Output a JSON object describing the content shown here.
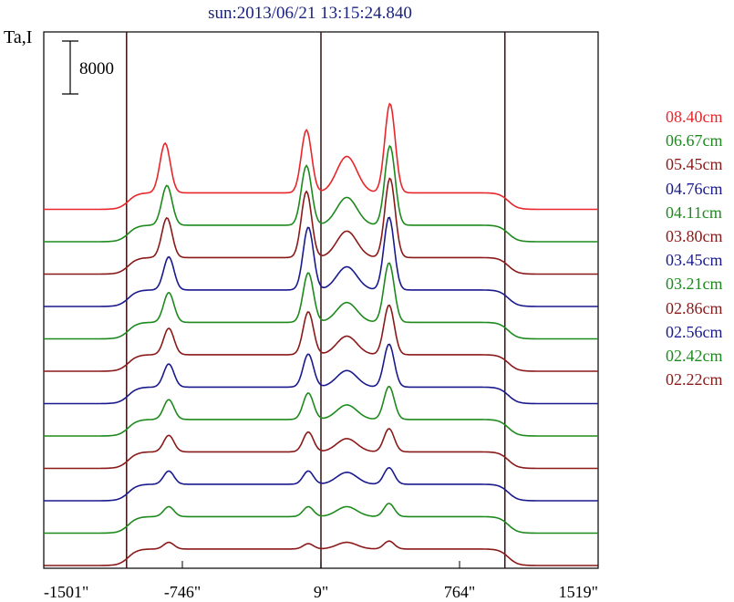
{
  "title": "sun:2013/06/21 13:15:24.840",
  "ylabel": "Ta,I",
  "scale_bar_label": "8000",
  "colors": {
    "red": "#e8262b",
    "green": "#1e8a1e",
    "maroon": "#8a1a1a",
    "blue": "#1a1a8e",
    "frame": "#000000",
    "vline": "#3a1010"
  },
  "chart_data": {
    "type": "line",
    "title": "sun:2013/06/21 13:15:24.840",
    "ylabel": "Ta,I",
    "xlabel": "",
    "x_tick_labels": [
      "-1501\"",
      "-746\"",
      "9\"",
      "764\"",
      "1519\""
    ],
    "x_ticks": [
      -1501,
      -746,
      9,
      764,
      1519
    ],
    "xlim": [
      -1501,
      1519
    ],
    "vertical_lines": [
      -1050,
      9,
      1011
    ],
    "scale_bar": 8000,
    "series": [
      {
        "name": "08.40cm",
        "color": "#e8262b",
        "offset_index": 11,
        "peaks": [
          [
            -840,
            7500
          ],
          [
            -70,
            9500
          ],
          [
            150,
            5500
          ],
          [
            385,
            13500
          ]
        ],
        "plateau": 2500
      },
      {
        "name": "06.67cm",
        "color": "#1e8a1e",
        "offset_index": 10,
        "peaks": [
          [
            -830,
            6000
          ],
          [
            -70,
            9000
          ],
          [
            150,
            4200
          ],
          [
            385,
            12000
          ]
        ],
        "plateau": 2500
      },
      {
        "name": "05.45cm",
        "color": "#8a1a1a",
        "offset_index": 9,
        "peaks": [
          [
            -830,
            6000
          ],
          [
            -70,
            10000
          ],
          [
            150,
            4000
          ],
          [
            385,
            12000
          ]
        ],
        "plateau": 2500
      },
      {
        "name": "04.76cm",
        "color": "#1a1a8e",
        "offset_index": 8,
        "peaks": [
          [
            -820,
            5000
          ],
          [
            -60,
            9500
          ],
          [
            150,
            3500
          ],
          [
            380,
            11000
          ]
        ],
        "plateau": 2500
      },
      {
        "name": "04.11cm",
        "color": "#1e8a1e",
        "offset_index": 7,
        "peaks": [
          [
            -820,
            4500
          ],
          [
            -60,
            7500
          ],
          [
            150,
            3000
          ],
          [
            380,
            9000
          ]
        ],
        "plateau": 2500
      },
      {
        "name": "03.80cm",
        "color": "#8a1a1a",
        "offset_index": 6,
        "peaks": [
          [
            -820,
            4000
          ],
          [
            -60,
            6500
          ],
          [
            150,
            2800
          ],
          [
            380,
            7500
          ]
        ],
        "plateau": 2500
      },
      {
        "name": "03.45cm",
        "color": "#1a1a8e",
        "offset_index": 5,
        "peaks": [
          [
            -820,
            3500
          ],
          [
            -60,
            5000
          ],
          [
            150,
            2500
          ],
          [
            380,
            6500
          ]
        ],
        "plateau": 2500
      },
      {
        "name": "03.21cm",
        "color": "#1e8a1e",
        "offset_index": 4,
        "peaks": [
          [
            -820,
            3000
          ],
          [
            -60,
            4000
          ],
          [
            150,
            2200
          ],
          [
            380,
            5000
          ]
        ],
        "plateau": 2500
      },
      {
        "name": "02.86cm",
        "color": "#8a1a1a",
        "offset_index": 3,
        "peaks": [
          [
            -820,
            2500
          ],
          [
            -60,
            3000
          ],
          [
            150,
            2000
          ],
          [
            380,
            3500
          ]
        ],
        "plateau": 2500
      },
      {
        "name": "02.56cm",
        "color": "#1a1a8e",
        "offset_index": 2,
        "peaks": [
          [
            -820,
            2000
          ],
          [
            -60,
            2000
          ],
          [
            150,
            1800
          ],
          [
            380,
            2500
          ]
        ],
        "plateau": 2500
      },
      {
        "name": "02.42cm",
        "color": "#1e8a1e",
        "offset_index": 1,
        "peaks": [
          [
            -820,
            1500
          ],
          [
            -60,
            1500
          ],
          [
            150,
            1500
          ],
          [
            380,
            2000
          ]
        ],
        "plateau": 2500
      },
      {
        "name": "02.22cm",
        "color": "#8a1a1a",
        "offset_index": 0,
        "peaks": [
          [
            -820,
            1000
          ],
          [
            -60,
            800
          ],
          [
            150,
            1000
          ],
          [
            380,
            1200
          ]
        ],
        "plateau": 2500
      }
    ]
  }
}
